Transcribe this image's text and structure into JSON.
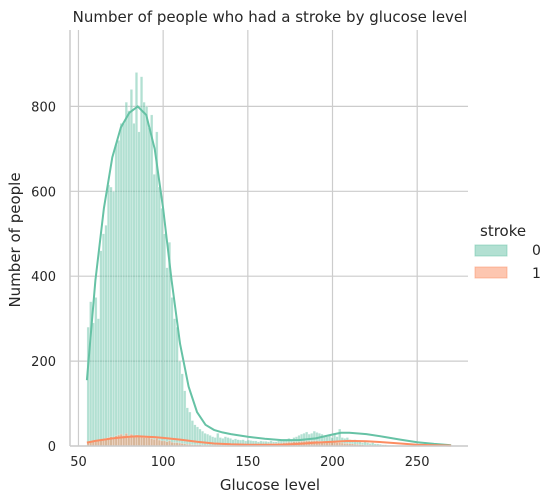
{
  "chart_data": {
    "type": "bar",
    "title": "Number of people who had a stroke by glucose level",
    "xlabel": "Glucose level",
    "ylabel": "Number of people",
    "xlim": [
      45,
      280
    ],
    "ylim": [
      0,
      980
    ],
    "xticks": [
      50,
      100,
      150,
      200,
      250
    ],
    "yticks": [
      0,
      200,
      400,
      600,
      800
    ],
    "grid": true,
    "legend": {
      "title": "stroke",
      "placement": "right",
      "entries": [
        "0",
        "1"
      ]
    },
    "colors": {
      "0": "#66c2a5",
      "1": "#fc8d62"
    },
    "series": [
      {
        "name": "0",
        "bin_start": 55,
        "bin_width": 1.5,
        "counts": [
          280,
          340,
          290,
          350,
          300,
          460,
          500,
          520,
          615,
          610,
          600,
          710,
          720,
          760,
          760,
          810,
          790,
          840,
          760,
          880,
          740,
          870,
          810,
          800,
          750,
          780,
          640,
          740,
          610,
          560,
          500,
          420,
          480,
          350,
          300,
          280,
          200,
          170,
          130,
          90,
          80,
          60,
          50,
          45,
          40,
          35,
          30,
          28,
          25,
          22,
          20,
          30,
          20,
          18,
          22,
          20,
          18,
          15,
          17,
          15,
          14,
          15,
          12,
          14,
          13,
          12,
          12,
          10,
          12,
          11,
          11,
          10,
          12,
          10,
          10,
          12,
          12,
          13,
          15,
          18,
          15,
          20,
          22,
          25,
          28,
          30,
          33,
          28,
          30,
          35,
          32,
          30,
          28,
          25,
          22,
          25,
          20,
          30,
          22,
          40,
          20,
          18,
          20,
          15,
          12,
          15,
          10,
          12,
          8,
          10,
          8,
          6,
          8,
          5,
          5,
          4,
          3,
          3,
          2,
          2,
          2,
          1,
          1,
          1
        ]
      },
      {
        "name": "1",
        "bin_start": 55,
        "bin_width": 1.5,
        "counts": [
          8,
          10,
          10,
          12,
          14,
          15,
          16,
          18,
          20,
          22,
          20,
          24,
          26,
          28,
          25,
          30,
          24,
          28,
          22,
          26,
          24,
          22,
          20,
          20,
          22,
          18,
          16,
          18,
          14,
          12,
          12,
          10,
          12,
          9,
          8,
          8,
          7,
          6,
          5,
          4,
          4,
          3,
          3,
          3,
          3,
          2,
          2,
          2,
          2,
          2,
          2,
          2,
          2,
          2,
          2,
          2,
          2,
          2,
          2,
          2,
          2,
          2,
          2,
          2,
          2,
          3,
          3,
          3,
          4,
          4,
          4,
          5,
          6,
          6,
          6,
          7,
          7,
          8,
          8,
          9,
          9,
          10,
          10,
          10,
          11,
          11,
          12,
          12,
          12,
          12,
          12,
          11,
          11,
          10,
          10,
          10,
          9,
          9,
          8,
          8,
          7,
          6,
          6,
          5,
          5,
          4,
          4,
          3,
          3,
          2,
          2,
          2,
          1,
          1,
          1,
          1,
          0,
          0,
          0,
          0,
          0,
          0,
          0,
          0
        ]
      }
    ],
    "kde": [
      {
        "name": "0",
        "points": [
          [
            55,
            155
          ],
          [
            60,
            390
          ],
          [
            65,
            560
          ],
          [
            70,
            680
          ],
          [
            75,
            750
          ],
          [
            80,
            785
          ],
          [
            85,
            800
          ],
          [
            90,
            780
          ],
          [
            95,
            700
          ],
          [
            100,
            560
          ],
          [
            105,
            390
          ],
          [
            110,
            240
          ],
          [
            115,
            140
          ],
          [
            120,
            80
          ],
          [
            125,
            50
          ],
          [
            130,
            38
          ],
          [
            135,
            32
          ],
          [
            140,
            28
          ],
          [
            150,
            22
          ],
          [
            160,
            17
          ],
          [
            170,
            14
          ],
          [
            180,
            14
          ],
          [
            190,
            18
          ],
          [
            200,
            27
          ],
          [
            205,
            31
          ],
          [
            210,
            31
          ],
          [
            220,
            28
          ],
          [
            230,
            22
          ],
          [
            240,
            15
          ],
          [
            250,
            9
          ],
          [
            260,
            5
          ],
          [
            270,
            2
          ]
        ]
      },
      {
        "name": "1",
        "points": [
          [
            55,
            8
          ],
          [
            60,
            12
          ],
          [
            65,
            15
          ],
          [
            70,
            18
          ],
          [
            75,
            20
          ],
          [
            80,
            22
          ],
          [
            85,
            23
          ],
          [
            90,
            22
          ],
          [
            95,
            21
          ],
          [
            100,
            19
          ],
          [
            110,
            15
          ],
          [
            120,
            10
          ],
          [
            130,
            6
          ],
          [
            140,
            4
          ],
          [
            150,
            3
          ],
          [
            160,
            3
          ],
          [
            170,
            3
          ],
          [
            180,
            5
          ],
          [
            190,
            8
          ],
          [
            200,
            10
          ],
          [
            210,
            12
          ],
          [
            220,
            11
          ],
          [
            230,
            9
          ],
          [
            240,
            6
          ],
          [
            250,
            3
          ],
          [
            260,
            2
          ],
          [
            270,
            1
          ]
        ]
      }
    ]
  }
}
